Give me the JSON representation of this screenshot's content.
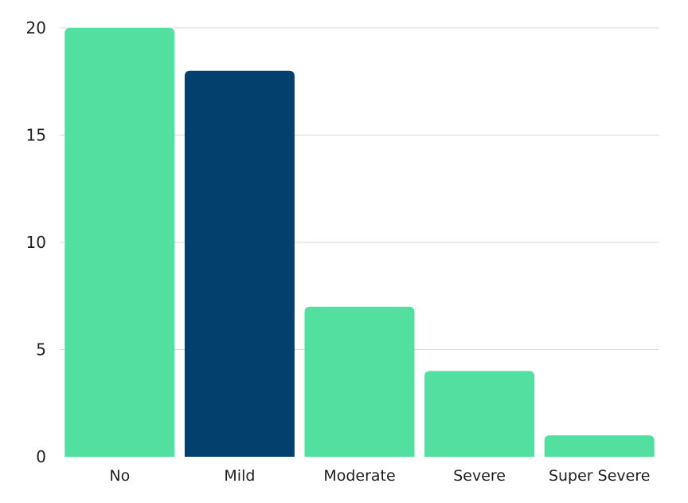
{
  "chart_data": {
    "type": "bar",
    "title": "",
    "xlabel": "",
    "ylabel": "",
    "categories": [
      "No",
      "Mild",
      "Moderate",
      "Severe",
      "Super Severe"
    ],
    "values": [
      20,
      18,
      7,
      4,
      1
    ],
    "ylim": [
      0,
      20
    ],
    "yticks": [
      0,
      5,
      10,
      15,
      20
    ],
    "grid": true,
    "legend": "none",
    "colors": {
      "default": "#52DFA0",
      "highlight": "#03406E",
      "grid": "#D9D9D9",
      "text": "#1F1F1F"
    },
    "highlight_index": 1
  }
}
